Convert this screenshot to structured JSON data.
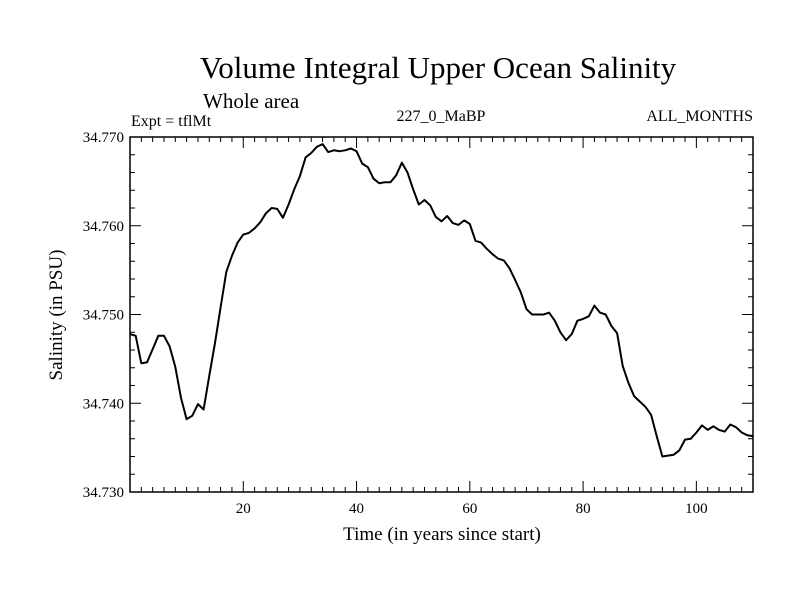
{
  "chart_data": {
    "type": "line",
    "title": "Volume Integral Upper Ocean Salinity",
    "subtitle": "Whole area",
    "experiment": "Expt = tflMt",
    "run_id": "227_0_MaBP",
    "months": "ALL_MONTHS",
    "xlabel": "Time (in years since start)",
    "ylabel": "Salinity (in PSU)",
    "xlim": [
      0,
      110
    ],
    "ylim": [
      34.73,
      34.77
    ],
    "xticks": [
      20,
      40,
      60,
      80,
      100
    ],
    "xtick_labels": [
      "20",
      "40",
      "60",
      "80",
      "100"
    ],
    "yticks": [
      34.73,
      34.74,
      34.75,
      34.76,
      34.77
    ],
    "ytick_labels": [
      "34.730",
      "34.740",
      "34.750",
      "34.760",
      "34.770"
    ],
    "grid": false,
    "series": [
      {
        "name": "salinity",
        "x": [
          0,
          1,
          2,
          3,
          4,
          5,
          6,
          7,
          8,
          9,
          10,
          11,
          12,
          13,
          14,
          15,
          16,
          17,
          18,
          19,
          20,
          21,
          22,
          23,
          24,
          25,
          26,
          27,
          28,
          29,
          30,
          31,
          32,
          33,
          34,
          35,
          36,
          37,
          38,
          39,
          40,
          41,
          42,
          43,
          44,
          45,
          46,
          47,
          48,
          49,
          50,
          51,
          52,
          53,
          54,
          55,
          56,
          57,
          58,
          59,
          60,
          61,
          62,
          63,
          64,
          65,
          66,
          67,
          68,
          69,
          70,
          71,
          72,
          73,
          74,
          75,
          76,
          77,
          78,
          79,
          80,
          81,
          82,
          83,
          84,
          85,
          86,
          87,
          88,
          89,
          90,
          91,
          92,
          93,
          94,
          95,
          96,
          97,
          98,
          99,
          100,
          101,
          102,
          103,
          104,
          105,
          106,
          107,
          108,
          109,
          110
        ],
        "y": [
          34.7478,
          34.7476,
          34.7445,
          34.7446,
          34.7461,
          34.7476,
          34.7476,
          34.7464,
          34.7441,
          34.7406,
          34.7382,
          34.7386,
          34.7399,
          34.7393,
          34.7431,
          34.7468,
          34.7508,
          34.7548,
          34.7566,
          34.7581,
          34.759,
          34.7592,
          34.7597,
          34.7604,
          34.7614,
          34.762,
          34.7619,
          34.7609,
          34.7624,
          34.7641,
          34.7656,
          34.7677,
          34.7682,
          34.7689,
          34.7692,
          34.7683,
          34.7685,
          34.7684,
          34.7685,
          34.7687,
          34.7684,
          34.767,
          34.7666,
          34.7653,
          34.7648,
          34.7649,
          34.7649,
          34.7657,
          34.7671,
          34.766,
          34.7641,
          34.7624,
          34.7629,
          34.7623,
          34.761,
          34.7605,
          34.7611,
          34.7603,
          34.7601,
          34.7606,
          34.7602,
          34.7583,
          34.7581,
          34.7574,
          34.7568,
          34.7563,
          34.7561,
          34.7552,
          34.7539,
          34.7525,
          34.7506,
          34.75,
          34.75,
          34.75,
          34.7502,
          34.7493,
          34.748,
          34.7471,
          34.7478,
          34.7493,
          34.7495,
          34.7498,
          34.751,
          34.7502,
          34.75,
          34.7487,
          34.7479,
          34.7442,
          34.7423,
          34.7408,
          34.7402,
          34.7396,
          34.7387,
          34.7363,
          34.734,
          34.7341,
          34.7342,
          34.7347,
          34.7359,
          34.736,
          34.7367,
          34.7375,
          34.737,
          34.7374,
          34.737,
          34.7368,
          34.7376,
          34.7373,
          34.7367,
          34.7364,
          34.7363
        ]
      }
    ],
    "line_color": "#000000"
  }
}
